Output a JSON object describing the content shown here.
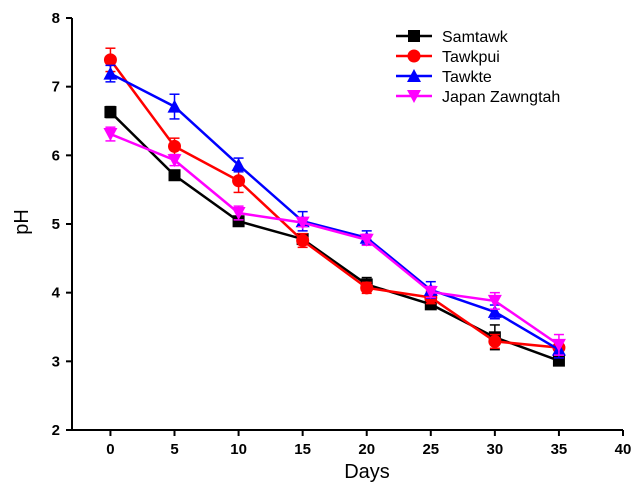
{
  "chart_data": {
    "type": "line",
    "xlabel": "Days",
    "ylabel": "pH",
    "xlim": [
      -3,
      40
    ],
    "ylim": [
      2,
      8
    ],
    "xticks": [
      0,
      5,
      10,
      15,
      20,
      25,
      30,
      35,
      40
    ],
    "yticks": [
      2,
      3,
      4,
      5,
      6,
      7,
      8
    ],
    "x": [
      0,
      5,
      10,
      15,
      20,
      25,
      30,
      35
    ],
    "legend_position": "top-right",
    "grid": false,
    "series": [
      {
        "name": "Samtawk",
        "color": "#000000",
        "marker": "square",
        "values": [
          6.63,
          5.71,
          5.04,
          4.78,
          4.12,
          3.83,
          3.35,
          3.01
        ],
        "errors": [
          0.08,
          0.06,
          0.05,
          0.07,
          0.1,
          0.06,
          0.18,
          0.06
        ]
      },
      {
        "name": "Tawkpui",
        "color": "#ff0000",
        "marker": "circle",
        "values": [
          7.39,
          6.13,
          5.63,
          4.76,
          4.07,
          3.93,
          3.29,
          3.2
        ],
        "errors": [
          0.17,
          0.12,
          0.17,
          0.1,
          0.08,
          0.09,
          0.1,
          0.1
        ]
      },
      {
        "name": "Tawkte",
        "color": "#0000ff",
        "marker": "triangle-up",
        "values": [
          7.19,
          6.71,
          5.86,
          5.04,
          4.8,
          4.04,
          3.72,
          3.17
        ],
        "errors": [
          0.12,
          0.18,
          0.1,
          0.14,
          0.1,
          0.12,
          0.1,
          0.12
        ]
      },
      {
        "name": "Japan Zawngtah",
        "color": "#ff00ff",
        "marker": "triangle-down",
        "values": [
          6.31,
          5.93,
          5.16,
          5.02,
          4.77,
          4.01,
          3.88,
          3.24
        ],
        "errors": [
          0.1,
          0.08,
          0.1,
          0.06,
          0.08,
          0.08,
          0.12,
          0.15
        ]
      }
    ]
  }
}
